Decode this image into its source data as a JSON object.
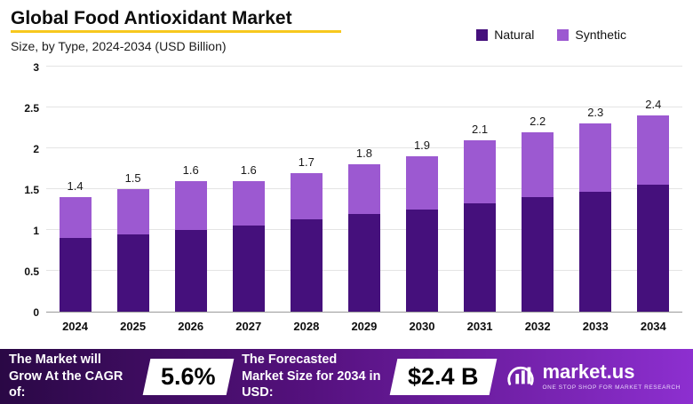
{
  "header": {
    "title": "Global Food Antioxidant Market",
    "subtitle": "Size, by Type, 2024-2034 (USD Billion)"
  },
  "colors": {
    "natural": "#45107c",
    "synthetic": "#9c59d1",
    "title_underline": "#f7c81e",
    "footer_gradient_start": "#2a0845",
    "footer_gradient_end": "#8d2fd0",
    "gridline": "#e4e4e4",
    "axis_line": "#9a9a9a"
  },
  "legend": [
    {
      "label": "Natural",
      "color": "#45107c"
    },
    {
      "label": "Synthetic",
      "color": "#9c59d1"
    }
  ],
  "chart_data": {
    "type": "bar",
    "stacked": true,
    "title": "Global Food Antioxidant Market",
    "subtitle": "Size, by Type, 2024-2034 (USD Billion)",
    "unit": "USD Billion",
    "categories": [
      "2024",
      "2025",
      "2026",
      "2027",
      "2028",
      "2029",
      "2030",
      "2031",
      "2032",
      "2033",
      "2034"
    ],
    "series": [
      {
        "name": "Natural",
        "color": "#45107c",
        "values": [
          0.9,
          0.95,
          1.0,
          1.05,
          1.13,
          1.2,
          1.25,
          1.33,
          1.4,
          1.47,
          1.55
        ]
      },
      {
        "name": "Synthetic",
        "color": "#9c59d1",
        "values": [
          0.5,
          0.55,
          0.6,
          0.55,
          0.57,
          0.6,
          0.65,
          0.77,
          0.8,
          0.83,
          0.85
        ]
      }
    ],
    "totals": [
      1.4,
      1.5,
      1.6,
      1.6,
      1.7,
      1.8,
      1.9,
      2.1,
      2.2,
      2.3,
      2.4
    ],
    "ylim": [
      0,
      3
    ],
    "yticks": [
      0,
      0.5,
      1,
      1.5,
      2,
      2.5,
      3
    ],
    "grid": true,
    "legend_position": "top-right"
  },
  "footer": {
    "cagr_label": "The Market will Grow At the CAGR of:",
    "cagr_value": "5.6%",
    "forecast_label": "The Forecasted Market Size for 2034 in USD:",
    "forecast_value": "$2.4 B",
    "brand_name": "market.us",
    "brand_tagline": "ONE STOP SHOP FOR MARKET RESEARCH"
  }
}
